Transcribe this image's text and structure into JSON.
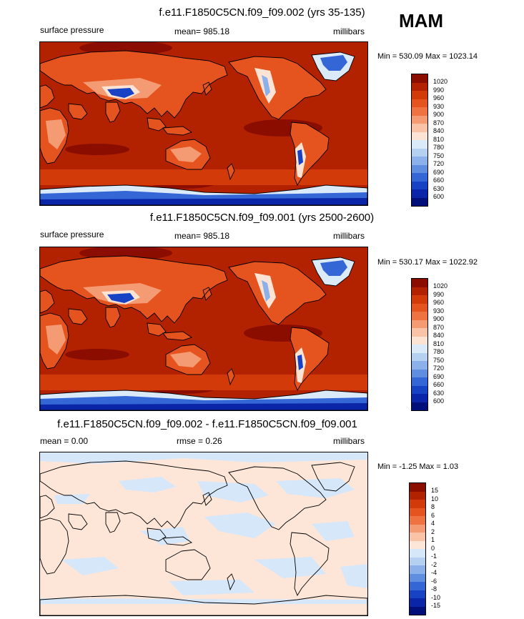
{
  "season": "MAM",
  "panels": [
    {
      "title": "f.e11.F1850C5CN.f09_f09.002 (yrs 35-135)",
      "left_label": "surface pressure",
      "center_label": "mean= 985.18",
      "right_label": "millibars",
      "minmax": "Min = 530.09 Max = 1023.14",
      "kind": "abs"
    },
    {
      "title": "f.e11.F1850C5CN.f09_f09.001 (yrs 2500-2600)",
      "left_label": "surface pressure",
      "center_label": "mean= 985.18",
      "right_label": "millibars",
      "minmax": "Min = 530.17 Max = 1022.92",
      "kind": "abs"
    },
    {
      "title": "f.e11.F1850C5CN.f09_f09.002 - f.e11.F1850C5CN.f09_f09.001",
      "left_label": "mean =  0.00",
      "center_label": "rmse =  0.26",
      "right_label": "millibars",
      "minmax": "Min =  -1.25 Max =   1.03",
      "kind": "diff"
    }
  ],
  "legend_abs": {
    "labels": [
      "1020",
      "990",
      "960",
      "930",
      "900",
      "870",
      "840",
      "810",
      "780",
      "750",
      "720",
      "690",
      "660",
      "630",
      "600"
    ],
    "colors": [
      "#8b0d00",
      "#b32200",
      "#d23a0a",
      "#e5541f",
      "#ef7342",
      "#f59b74",
      "#fac3a8",
      "#fde3d4",
      "#dbeaf9",
      "#b6d0f2",
      "#8cb1ea",
      "#5f8ee0",
      "#3566d6",
      "#1742c4",
      "#0a25a8",
      "#000f7a"
    ]
  },
  "legend_diff": {
    "labels": [
      "15",
      "10",
      "8",
      "6",
      "4",
      "2",
      "1",
      "0",
      "-1",
      "-2",
      "-4",
      "-6",
      "-8",
      "-10",
      "-15"
    ],
    "colors": [
      "#8b0d00",
      "#b32200",
      "#d23a0a",
      "#e5541f",
      "#ef7342",
      "#f59b74",
      "#fac3a8",
      "#fde6d8",
      "#d6e7fa",
      "#b6d0f2",
      "#8cb1ea",
      "#5f8ee0",
      "#3566d6",
      "#1742c4",
      "#0a25a8",
      "#000f7a"
    ]
  }
}
